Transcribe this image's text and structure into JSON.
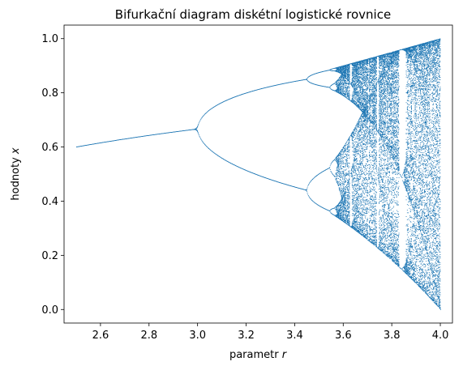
{
  "chart_data": {
    "type": "scatter",
    "title": "Bifurkační diagram diskétní logistické rovnice",
    "xlabel": "parametr ",
    "xlabel_var": "r",
    "ylabel": "hodnoty ",
    "ylabel_var": "x",
    "xlim": [
      2.45,
      4.05
    ],
    "ylim": [
      -0.05,
      1.05
    ],
    "x_ticks": [
      2.6,
      2.8,
      3.0,
      3.2,
      3.4,
      3.6,
      3.8,
      4.0
    ],
    "x_tick_labels": [
      "2.6",
      "2.8",
      "3.0",
      "3.2",
      "3.4",
      "3.6",
      "3.8",
      "4.0"
    ],
    "y_ticks": [
      0.0,
      0.2,
      0.4,
      0.6,
      0.8,
      1.0
    ],
    "y_tick_labels": [
      "0.0",
      "0.2",
      "0.4",
      "0.6",
      "0.8",
      "1.0"
    ],
    "grid": false,
    "legend": "none",
    "series": [
      {
        "map": "x_{n+1} = r * x_n * (1 - x_n)",
        "r_range": [
          2.5,
          4.0
        ],
        "color": "#1f77b4"
      }
    ]
  }
}
